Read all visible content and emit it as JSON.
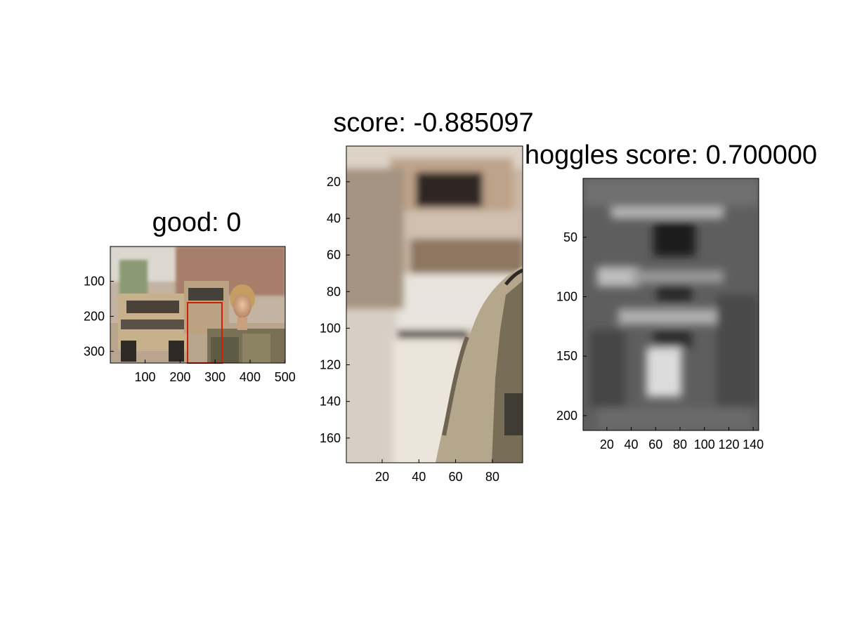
{
  "chart_data": [
    {
      "type": "image",
      "title": "good: 0",
      "xticks": [
        100,
        200,
        300,
        400,
        500
      ],
      "yticks": [
        100,
        200,
        300
      ],
      "xlim": [
        0.5,
        500.5
      ],
      "ylim": [
        0.5,
        333.5
      ],
      "bbox_color": "#cc2200",
      "bbox": {
        "x1": 222,
        "x2": 320,
        "y1": 157,
        "y2": 333
      },
      "description": "street scene: military humvees with a woman in camouflage uniform on the right"
    },
    {
      "type": "image",
      "title": "score: -0.885097",
      "xticks": [
        20,
        40,
        60,
        80
      ],
      "yticks": [
        20,
        40,
        60,
        80,
        100,
        120,
        140,
        160
      ],
      "xlim": [
        0.5,
        96.5
      ],
      "ylim": [
        0.5,
        173.5
      ],
      "description": "cropped window: blurred humvee on the left, soldier shoulder on the right"
    },
    {
      "type": "heatmap",
      "title": "hoggles score: 0.700000",
      "colormap": "gray",
      "xticks": [
        20,
        40,
        60,
        80,
        100,
        120,
        140
      ],
      "yticks": [
        50,
        100,
        150,
        200
      ],
      "xlim": [
        0.5,
        144.5
      ],
      "ylim": [
        0.5,
        212.5
      ],
      "description": "grayscale HOGgles inverse visualization of the window"
    }
  ]
}
